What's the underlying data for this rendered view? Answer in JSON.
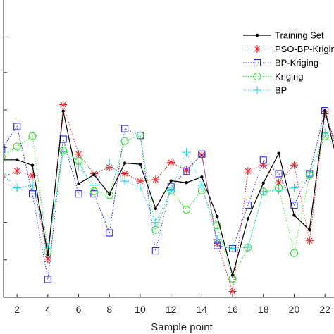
{
  "chart_data": {
    "type": "line",
    "title": "",
    "xlabel": "Sample point",
    "ylabel": "",
    "xlim": [
      1,
      23
    ],
    "ylim": [
      0,
      10
    ],
    "grid": false,
    "legend_position": "top-right",
    "x_tick_values": [
      2,
      4,
      6,
      8,
      10,
      12,
      14,
      16,
      18,
      20,
      22
    ],
    "x_tick_labels": [
      "2",
      "4",
      "6",
      "8",
      "10",
      "12",
      "14",
      "16",
      "18",
      "20",
      "22"
    ],
    "x": [
      1,
      2,
      3,
      4,
      5,
      6,
      7,
      8,
      9,
      10,
      11,
      12,
      13,
      14,
      15,
      16,
      17,
      18,
      19,
      20,
      21,
      22,
      23
    ],
    "series": [
      {
        "name": "Training Set",
        "color": "#000000",
        "marker": "dot",
        "line": "solid",
        "values": [
          3.67,
          3.67,
          3.52,
          1.13,
          4.97,
          3.03,
          3.27,
          2.75,
          3.58,
          3.55,
          2.37,
          3.11,
          3.06,
          3.21,
          2.16,
          0.59,
          2.1,
          3.05,
          3.84,
          2.19,
          1.8,
          4.98,
          3.3
        ]
      },
      {
        "name": "PSO-BP-Kriging",
        "color": "#e8262a",
        "marker": "asterisk",
        "line": "dotted",
        "values": [
          3.2,
          3.37,
          3.25,
          1.02,
          5.14,
          3.82,
          3.3,
          3.47,
          3.3,
          3.1,
          3.14,
          3.6,
          3.4,
          3.8,
          1.44,
          0.16,
          3.37,
          3.53,
          3.06,
          3.53,
          1.51,
          4.9,
          3.8
        ]
      },
      {
        "name": "BP-Kriging",
        "color": "#2a2ad8",
        "marker": "square",
        "line": "dotted",
        "values": [
          3.95,
          4.56,
          2.76,
          0.48,
          4.22,
          2.76,
          2.76,
          1.72,
          4.5,
          4.32,
          1.24,
          2.96,
          3.36,
          3.82,
          1.38,
          1.3,
          2.46,
          3.66,
          3.3,
          2.46,
          3.3,
          4.98,
          3.6
        ]
      },
      {
        "name": "Kriging",
        "color": "#2fe02f",
        "marker": "circle",
        "line": "dotted",
        "values": [
          3.75,
          4.02,
          4.3,
          1.22,
          3.92,
          3.64,
          2.83,
          2.73,
          4.17,
          4.32,
          1.8,
          2.85,
          2.34,
          2.85,
          1.92,
          0.5,
          1.33,
          2.82,
          2.92,
          1.18,
          3.27,
          4.3,
          3.9
        ]
      },
      {
        "name": "BP",
        "color": "#1ed8e8",
        "marker": "plus",
        "line": "dotted",
        "values": [
          3.29,
          2.92,
          2.99,
          1.34,
          3.88,
          3.5,
          2.99,
          3.58,
          3.1,
          2.94,
          2.0,
          2.85,
          3.87,
          2.99,
          1.55,
          1.31,
          1.33,
          2.82,
          2.86,
          2.92,
          3.25,
          4.4,
          3.7
        ]
      }
    ]
  }
}
